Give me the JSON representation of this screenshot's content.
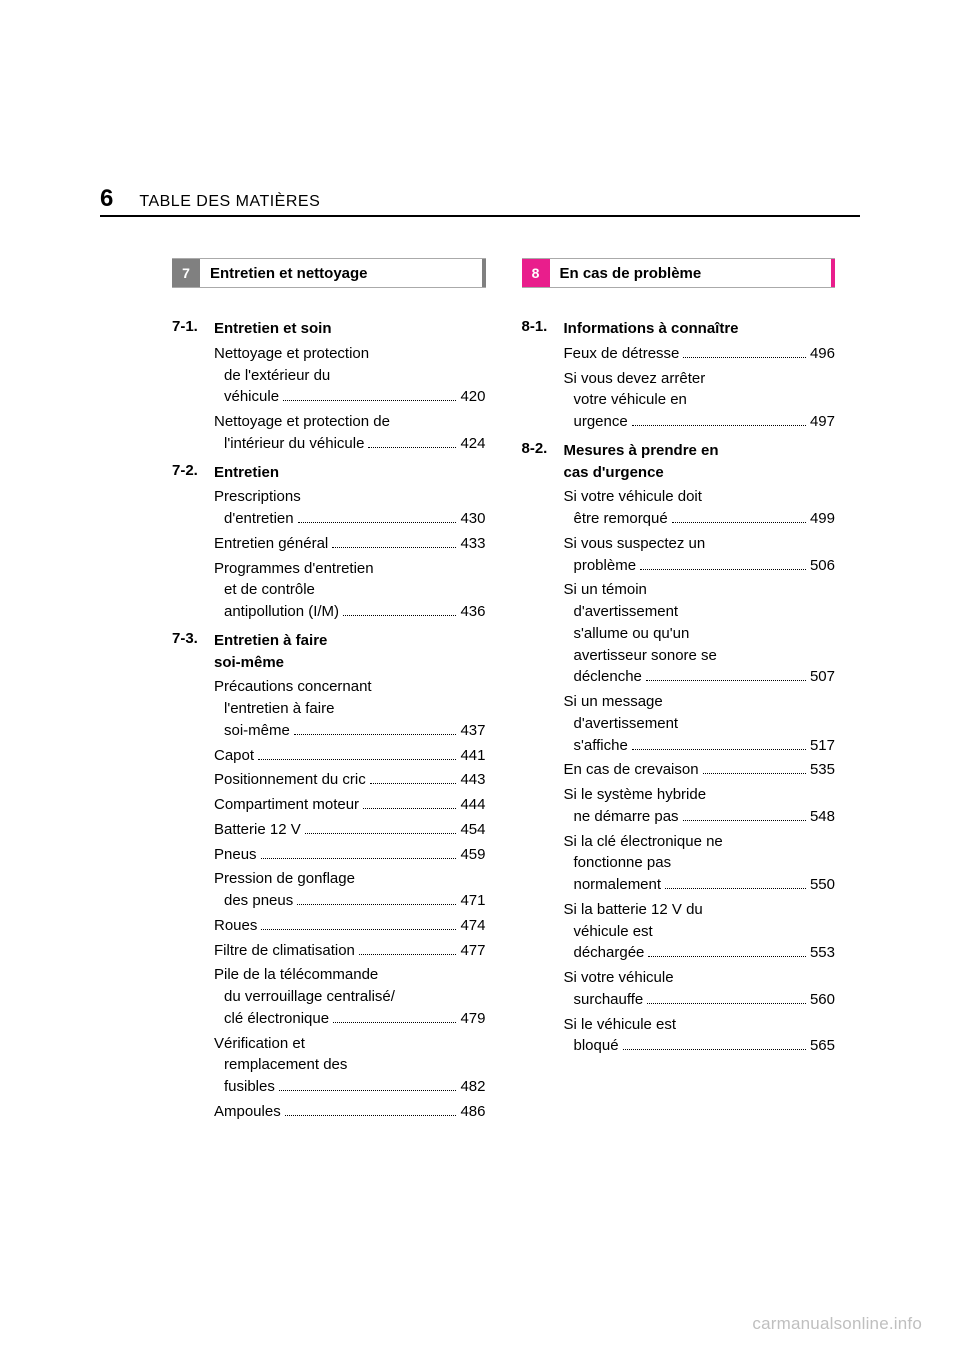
{
  "page_number": "6",
  "breadcrumb": "TABLE DES MATIÈRES",
  "watermark": "carmanualsonline.info",
  "colors": {
    "section7_tab": "#808080",
    "section8_tab": "#e91e8c",
    "hr": "#000000",
    "text": "#000000",
    "watermark": "#bfbfbf",
    "background": "#ffffff"
  },
  "left_column": {
    "tab": {
      "number": "7",
      "title": "Entretien et nettoyage"
    },
    "subsections": [
      {
        "num": "7-1.",
        "title": "Entretien et soin",
        "entries": [
          {
            "lines": [
              "Nettoyage et protection",
              "de l'extérieur du",
              "véhicule"
            ],
            "page": "420"
          },
          {
            "lines": [
              "Nettoyage et protection de",
              "l'intérieur du véhicule"
            ],
            "page": "424"
          }
        ]
      },
      {
        "num": "7-2.",
        "title": "Entretien",
        "entries": [
          {
            "lines": [
              "Prescriptions",
              "d'entretien"
            ],
            "page": "430"
          },
          {
            "lines": [
              "Entretien général"
            ],
            "page": "433"
          },
          {
            "lines": [
              "Programmes d'entretien",
              "et de contrôle",
              "antipollution (I/M)"
            ],
            "page": "436"
          }
        ]
      },
      {
        "num": "7-3.",
        "title_lines": [
          "Entretien à faire",
          "soi-même"
        ],
        "entries": [
          {
            "lines": [
              "Précautions concernant",
              "l'entretien à faire",
              "soi-même"
            ],
            "page": "437"
          },
          {
            "lines": [
              "Capot"
            ],
            "page": "441"
          },
          {
            "lines": [
              "Positionnement du cric"
            ],
            "page": "443"
          },
          {
            "lines": [
              "Compartiment moteur"
            ],
            "page": "444"
          },
          {
            "lines": [
              "Batterie 12 V"
            ],
            "page": "454"
          },
          {
            "lines": [
              "Pneus"
            ],
            "page": "459"
          },
          {
            "lines": [
              "Pression de gonflage",
              "des pneus"
            ],
            "page": "471"
          },
          {
            "lines": [
              "Roues"
            ],
            "page": "474"
          },
          {
            "lines": [
              "Filtre de climatisation"
            ],
            "page": "477"
          },
          {
            "lines": [
              "Pile de la télécommande",
              "du verrouillage centralisé/",
              "clé électronique"
            ],
            "page": "479"
          },
          {
            "lines": [
              "Vérification et",
              "remplacement des",
              "fusibles"
            ],
            "page": "482"
          },
          {
            "lines": [
              "Ampoules"
            ],
            "page": "486"
          }
        ]
      }
    ]
  },
  "right_column": {
    "tab": {
      "number": "8",
      "title": "En cas de problème"
    },
    "subsections": [
      {
        "num": "8-1.",
        "title": "Informations à connaître",
        "entries": [
          {
            "lines": [
              "Feux de détresse"
            ],
            "page": "496"
          },
          {
            "lines": [
              "Si vous devez arrêter",
              "votre véhicule en",
              "urgence"
            ],
            "page": "497"
          }
        ]
      },
      {
        "num": "8-2.",
        "title_lines": [
          "Mesures à prendre en",
          "cas d'urgence"
        ],
        "entries": [
          {
            "lines": [
              "Si votre véhicule doit",
              "être remorqué"
            ],
            "page": "499"
          },
          {
            "lines": [
              "Si vous suspectez un",
              "problème"
            ],
            "page": "506"
          },
          {
            "lines": [
              "Si un témoin",
              "d'avertissement",
              "s'allume ou qu'un",
              "avertisseur sonore se",
              "déclenche"
            ],
            "page": "507"
          },
          {
            "lines": [
              "Si un message",
              "d'avertissement",
              "s'affiche"
            ],
            "page": "517"
          },
          {
            "lines": [
              "En cas de crevaison"
            ],
            "page": "535"
          },
          {
            "lines": [
              "Si le système hybride",
              "ne démarre pas"
            ],
            "page": "548"
          },
          {
            "lines": [
              "Si la clé électronique ne",
              "fonctionne pas",
              "normalement"
            ],
            "page": "550"
          },
          {
            "lines": [
              "Si la batterie 12 V du",
              "véhicule est",
              "déchargée"
            ],
            "page": "553"
          },
          {
            "lines": [
              "Si votre véhicule",
              "surchauffe"
            ],
            "page": "560"
          },
          {
            "lines": [
              "Si le véhicule est",
              "bloqué"
            ],
            "page": "565"
          }
        ]
      }
    ]
  }
}
